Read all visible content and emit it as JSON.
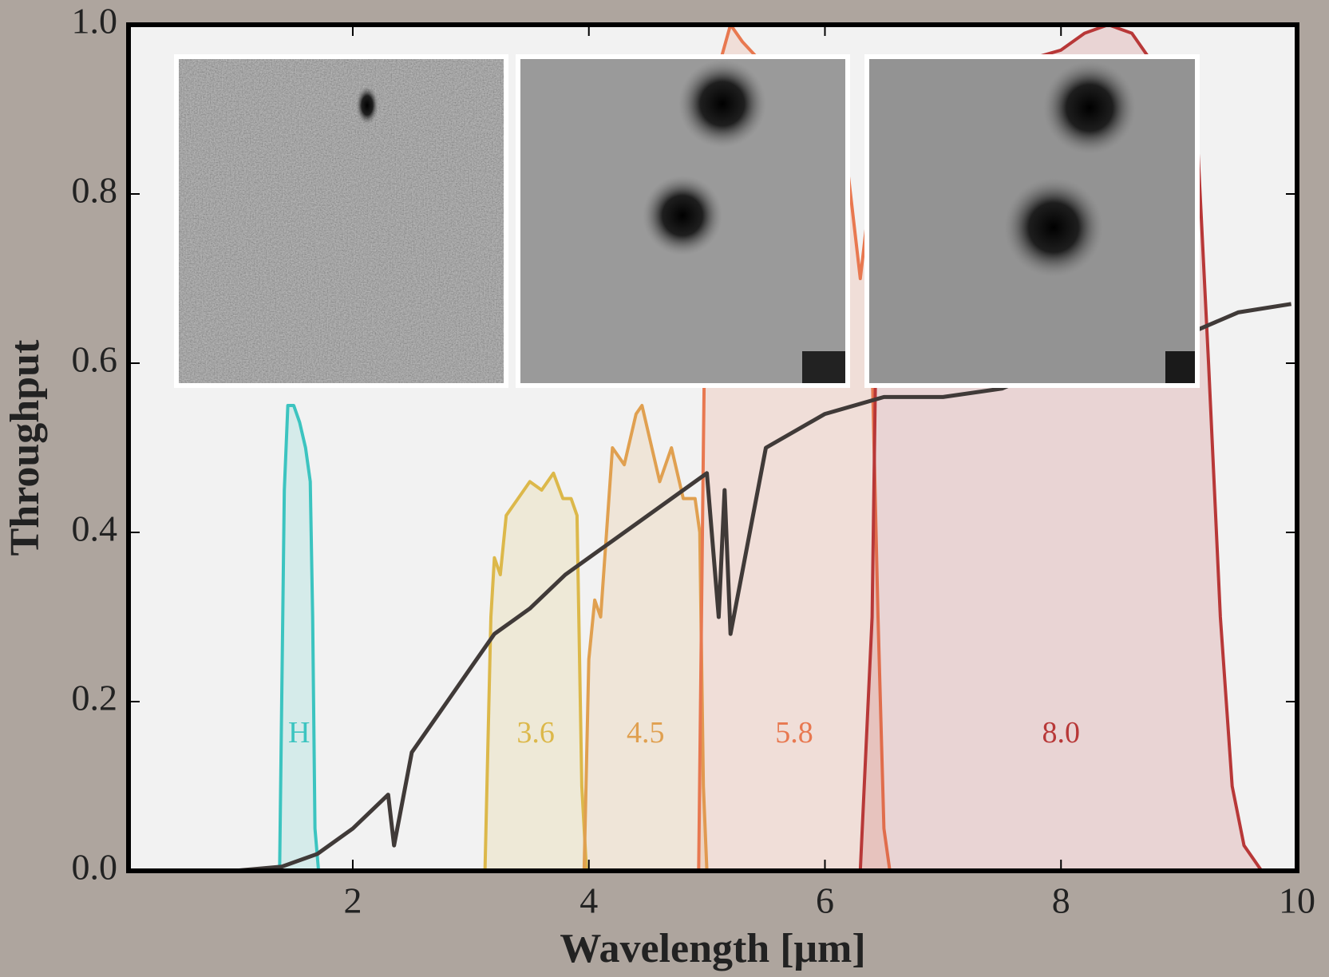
{
  "chart_data": {
    "type": "line",
    "xlabel": "Wavelength [μm]",
    "ylabel": "Throughput",
    "xlim": [
      0.1,
      10
    ],
    "ylim": [
      0,
      1
    ],
    "xticks": [
      2,
      4,
      6,
      8,
      10
    ],
    "yticks": [
      {
        "value": 0,
        "label": "0.0"
      },
      0.2,
      0.4,
      0.6,
      0.8,
      {
        "value": 1,
        "label": "1.0"
      }
    ],
    "series": [
      {
        "name": "H",
        "color": "#3cc4c0",
        "fill": true,
        "x": [
          1.38,
          1.42,
          1.45,
          1.5,
          1.55,
          1.6,
          1.64,
          1.66,
          1.68,
          1.71
        ],
        "values": [
          0,
          0.45,
          0.55,
          0.55,
          0.53,
          0.5,
          0.46,
          0.3,
          0.05,
          0
        ]
      },
      {
        "name": "3.6",
        "color": "#dcb84a",
        "fill": true,
        "x": [
          3.12,
          3.17,
          3.2,
          3.25,
          3.3,
          3.4,
          3.5,
          3.6,
          3.7,
          3.78,
          3.85,
          3.9,
          3.94,
          3.98
        ],
        "values": [
          0,
          0.3,
          0.37,
          0.35,
          0.42,
          0.44,
          0.46,
          0.45,
          0.47,
          0.44,
          0.44,
          0.42,
          0.1,
          0
        ]
      },
      {
        "name": "4.5",
        "color": "#e0a050",
        "fill": true,
        "x": [
          3.96,
          4.0,
          4.05,
          4.1,
          4.15,
          4.2,
          4.3,
          4.4,
          4.45,
          4.5,
          4.6,
          4.7,
          4.8,
          4.9,
          4.94,
          4.97,
          5.0
        ],
        "values": [
          0,
          0.25,
          0.32,
          0.3,
          0.4,
          0.5,
          0.48,
          0.54,
          0.55,
          0.52,
          0.46,
          0.5,
          0.44,
          0.44,
          0.4,
          0.1,
          0
        ]
      },
      {
        "name": "5.8",
        "color": "#e87850",
        "fill": true,
        "x": [
          4.93,
          4.97,
          5.0,
          5.1,
          5.2,
          5.3,
          5.5,
          5.8,
          6.0,
          6.2,
          6.3,
          6.35,
          6.4,
          6.45,
          6.5,
          6.55
        ],
        "values": [
          0,
          0.5,
          0.85,
          0.95,
          1.0,
          0.98,
          0.95,
          0.93,
          0.9,
          0.82,
          0.7,
          0.76,
          0.6,
          0.3,
          0.05,
          0
        ]
      },
      {
        "name": "8.0",
        "color": "#b83838",
        "fill": true,
        "x": [
          6.3,
          6.4,
          6.45,
          6.5,
          7,
          7.5,
          8,
          8.2,
          8.4,
          8.6,
          8.8,
          9.0,
          9.15,
          9.25,
          9.35,
          9.45,
          9.55,
          9.7
        ],
        "values": [
          0,
          0.3,
          0.8,
          0.92,
          0.93,
          0.95,
          0.97,
          0.99,
          1.0,
          0.99,
          0.95,
          0.92,
          0.88,
          0.6,
          0.3,
          0.1,
          0.03,
          0
        ]
      },
      {
        "color": "#403a38",
        "fill": false,
        "x": [
          1.0,
          1.4,
          1.7,
          2.0,
          2.3,
          2.35,
          2.5,
          2.8,
          3.0,
          3.2,
          3.5,
          3.8,
          4.0,
          4.5,
          5.0,
          5.1,
          5.15,
          5.2,
          5.5,
          6.0,
          6.5,
          7.0,
          7.5,
          8.0,
          8.5,
          9.0,
          9.5,
          9.95
        ],
        "values": [
          0,
          0.005,
          0.02,
          0.05,
          0.09,
          0.03,
          0.14,
          0.2,
          0.24,
          0.28,
          0.31,
          0.35,
          0.37,
          0.42,
          0.47,
          0.3,
          0.45,
          0.28,
          0.5,
          0.54,
          0.56,
          0.56,
          0.57,
          0.6,
          0.62,
          0.63,
          0.66,
          0.67
        ]
      }
    ]
  }
}
